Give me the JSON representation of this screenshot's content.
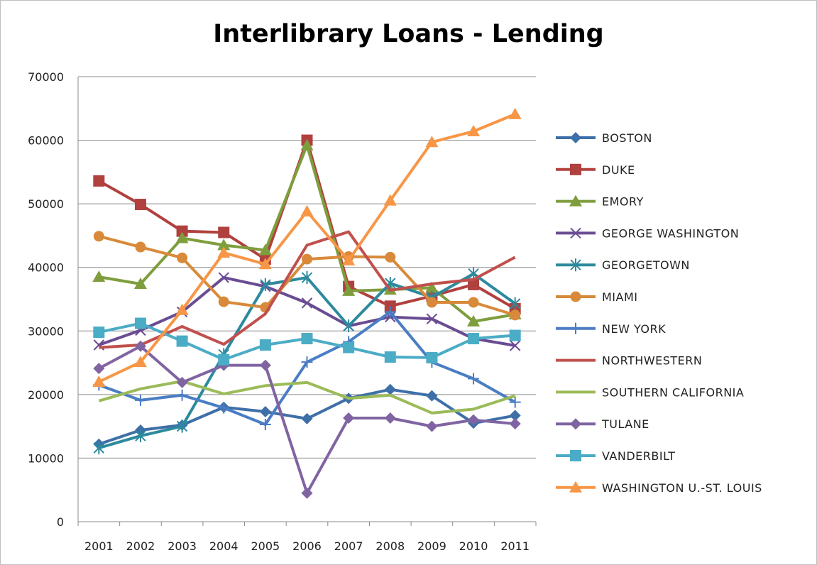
{
  "chart_data": {
    "type": "line",
    "title": "Interlibrary Loans - Lending",
    "xlabel": "",
    "ylabel": "",
    "x": [
      "2001",
      "2002",
      "2003",
      "2004",
      "2005",
      "2006",
      "2007",
      "2008",
      "2009",
      "2010",
      "2011"
    ],
    "ylim": [
      0,
      70000
    ],
    "yticks": [
      0,
      10000,
      20000,
      30000,
      40000,
      50000,
      60000,
      70000
    ],
    "grid": "horizontal",
    "legend_position": "right",
    "series": [
      {
        "name": "BOSTON",
        "color": "#3E6FA8",
        "marker": "diamond",
        "values": [
          12200,
          14400,
          15200,
          18000,
          17300,
          16200,
          19400,
          20800,
          19800,
          15500,
          16700
        ]
      },
      {
        "name": "DUKE",
        "color": "#B0413E",
        "marker": "square",
        "values": [
          53600,
          49900,
          45700,
          45500,
          41300,
          60000,
          37000,
          33900,
          35500,
          37300,
          33500
        ]
      },
      {
        "name": "EMORY",
        "color": "#7E9E3D",
        "marker": "triangle",
        "values": [
          38500,
          37400,
          44600,
          43500,
          42700,
          59200,
          36300,
          36500,
          36800,
          31500,
          32600
        ]
      },
      {
        "name": "GEORGE WASHINGTON",
        "color": "#6A4C93",
        "marker": "x",
        "values": [
          27800,
          30100,
          33000,
          38400,
          37000,
          34400,
          30800,
          32200,
          31900,
          28800,
          27700
        ]
      },
      {
        "name": "GEORGETOWN",
        "color": "#2D8A9E",
        "marker": "star",
        "values": [
          11600,
          13500,
          15000,
          26300,
          37300,
          38400,
          30800,
          37500,
          35300,
          39000,
          34300
        ]
      },
      {
        "name": "MIAMI",
        "color": "#D88A3A",
        "marker": "circle",
        "values": [
          44900,
          43200,
          41500,
          34600,
          33700,
          41300,
          41700,
          41600,
          34500,
          34500,
          32500
        ]
      },
      {
        "name": "NEW YORK",
        "color": "#4A7DC4",
        "marker": "plus",
        "values": [
          21500,
          19100,
          19900,
          17900,
          15300,
          25100,
          28300,
          33000,
          25100,
          22500,
          18800
        ]
      },
      {
        "name": "NORTHWESTERN",
        "color": "#C0504D",
        "marker": "none",
        "values": [
          27400,
          27800,
          30700,
          27900,
          32700,
          43500,
          45600,
          36400,
          37400,
          38100,
          41600
        ]
      },
      {
        "name": "SOUTHERN CALIFORNIA",
        "color": "#9BBB59",
        "marker": "none",
        "values": [
          19000,
          20900,
          22100,
          20100,
          21400,
          21900,
          19400,
          19900,
          17100,
          17700,
          19800
        ]
      },
      {
        "name": "TULANE",
        "color": "#8064A2",
        "marker": "diamond",
        "values": [
          24100,
          27600,
          21900,
          24600,
          24600,
          4500,
          16300,
          16300,
          15000,
          16000,
          15400
        ]
      },
      {
        "name": "VANDERBILT",
        "color": "#4BACC6",
        "marker": "square",
        "values": [
          29800,
          31200,
          28400,
          25500,
          27800,
          28800,
          27400,
          25900,
          25800,
          28800,
          29300
        ]
      },
      {
        "name": "WASHINGTON U.-ST. LOUIS",
        "color": "#F79646",
        "marker": "triangle",
        "values": [
          22000,
          25100,
          33300,
          42300,
          40500,
          48800,
          41100,
          50500,
          59700,
          61400,
          64100
        ]
      }
    ]
  }
}
